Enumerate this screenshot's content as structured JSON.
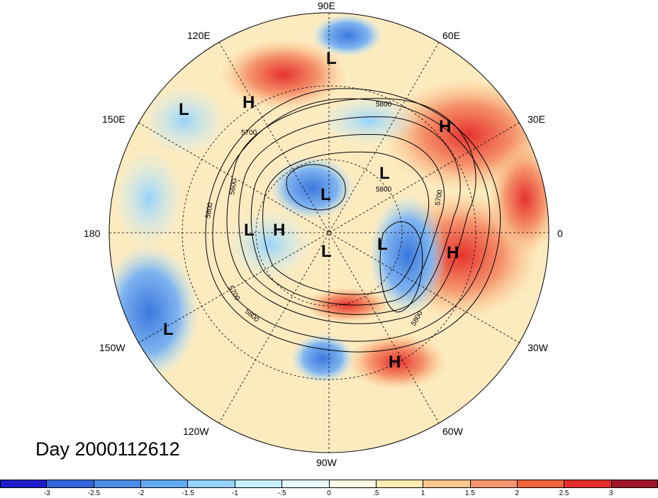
{
  "map": {
    "title": "Day 2000112612",
    "longitude_labels": {
      "top": "90E",
      "top_left": "120E",
      "top_right": "60E",
      "upper_left": "150E",
      "upper_right": "30E",
      "left": "180",
      "right": "0",
      "lower_left": "150W",
      "lower_right": "30W",
      "bottom_left": "120W",
      "bottom_right": "60W",
      "bottom": "90W"
    },
    "contour_labels": [
      "5800",
      "5700",
      "5600",
      "5800",
      "5700",
      "5800",
      "5800",
      "5700",
      "5800"
    ],
    "pressure_centers": [
      "L",
      "H",
      "L",
      "H",
      "L",
      "L",
      "L",
      "H",
      "L",
      "L",
      "H",
      "L",
      "H"
    ]
  },
  "colorbar": {
    "tick_labels": [
      "-3",
      "-2.5",
      "-2",
      "-1.5",
      "-1",
      "-.5",
      "0",
      ".5",
      "1",
      "1.5",
      "2",
      "2.5",
      "3"
    ],
    "colors": [
      "#1e1ec8",
      "#3264dc",
      "#4b8ce6",
      "#64aaf0",
      "#96d2fa",
      "#c8f0fc",
      "#e6fafe",
      "#fffbe6",
      "#fdebb4",
      "#fac88c",
      "#f5966e",
      "#f0643c",
      "#e62d2d",
      "#a01428"
    ]
  }
}
